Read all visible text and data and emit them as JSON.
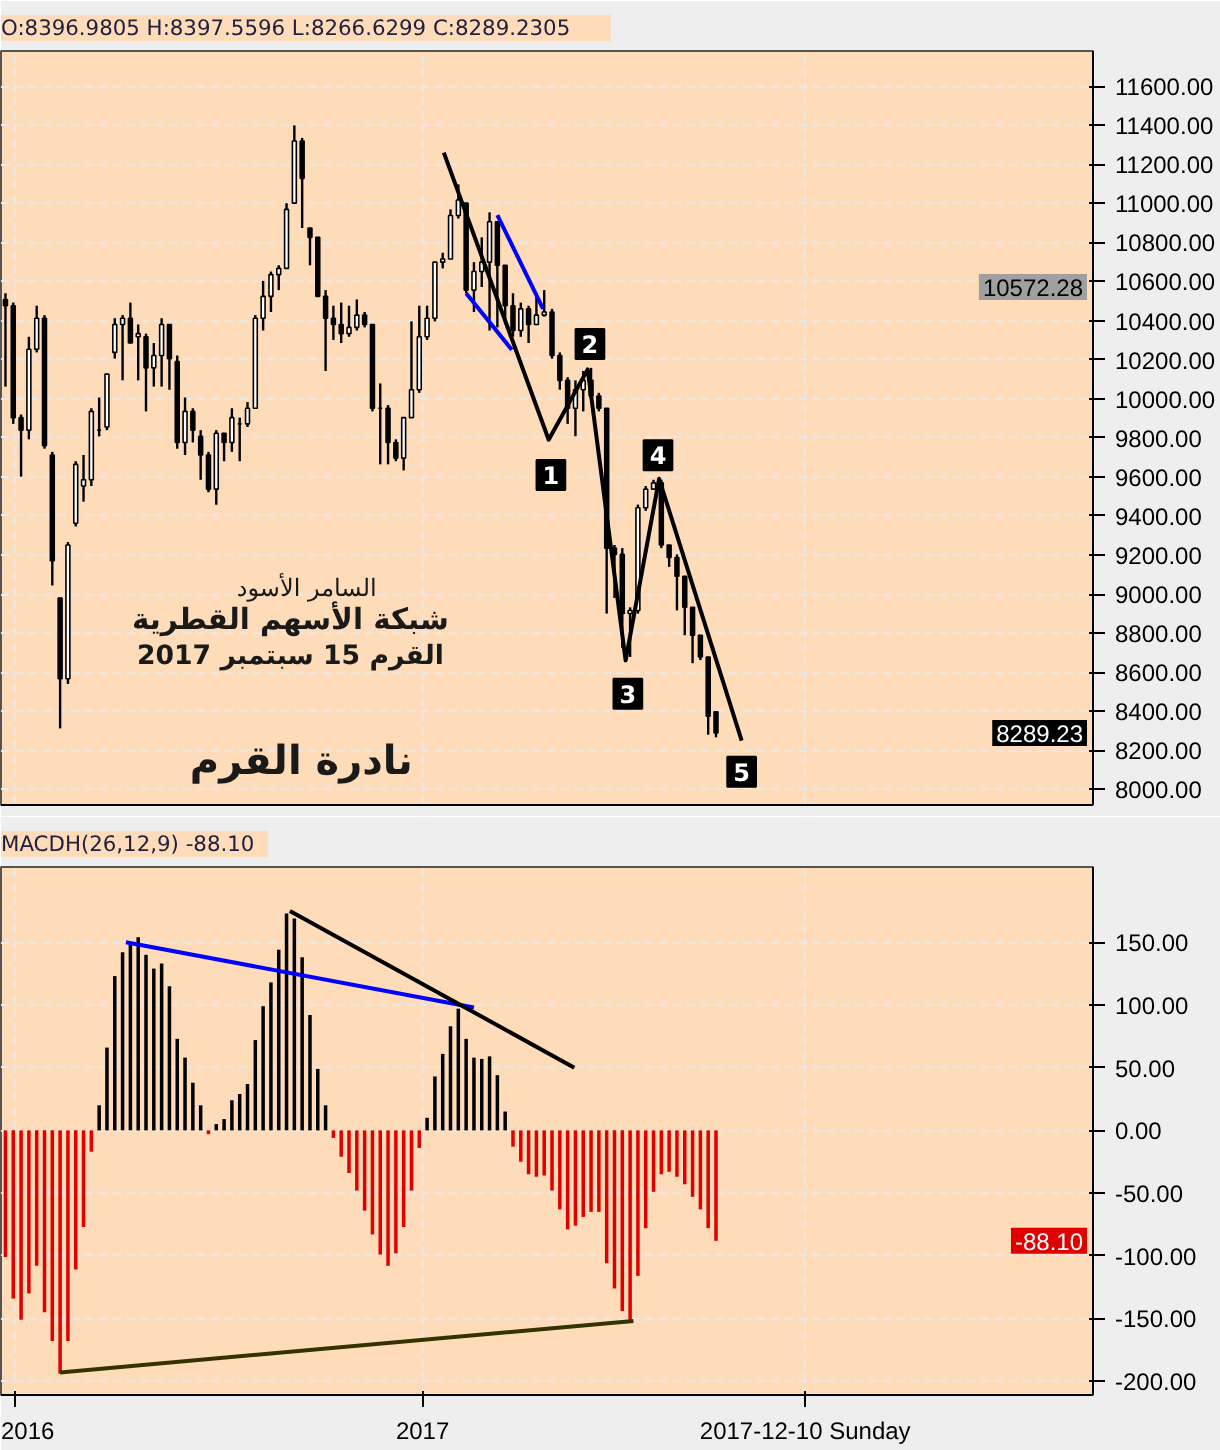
{
  "chart_data": [
    {
      "type": "candlestick",
      "title": "O:8396.9805   H:8397.5596   L:8266.6299   C:8289.2305",
      "color": "#000000",
      "x": [
        "2015-12-24",
        "2015-12-31",
        "2016-01-07",
        "2016-01-14",
        "2016-01-21",
        "2016-01-28",
        "2016-02-04",
        "2016-02-11",
        "2016-02-18",
        "2016-02-25",
        "2016-03-03",
        "2016-03-10",
        "2016-03-17",
        "2016-03-24",
        "2016-03-31",
        "2016-04-07",
        "2016-04-14",
        "2016-04-21",
        "2016-04-28",
        "2016-05-05",
        "2016-05-12",
        "2016-05-19",
        "2016-05-26",
        "2016-06-02",
        "2016-06-09",
        "2016-06-16",
        "2016-06-23",
        "2016-06-30",
        "2016-07-07",
        "2016-07-14",
        "2016-07-21",
        "2016-07-28",
        "2016-08-04",
        "2016-08-11",
        "2016-08-18",
        "2016-08-25",
        "2016-09-01",
        "2016-09-08",
        "2016-09-15",
        "2016-09-22",
        "2016-09-29",
        "2016-10-06",
        "2016-10-13",
        "2016-10-20",
        "2016-10-27",
        "2016-11-03",
        "2016-11-10",
        "2016-11-17",
        "2016-11-24",
        "2016-12-01",
        "2016-12-08",
        "2016-12-15",
        "2016-12-22",
        "2016-12-29",
        "2017-01-05",
        "2017-01-12",
        "2017-01-19",
        "2017-01-26",
        "2017-02-02",
        "2017-02-09",
        "2017-02-16",
        "2017-02-23",
        "2017-03-02",
        "2017-03-09",
        "2017-03-16",
        "2017-03-23",
        "2017-03-30",
        "2017-04-06",
        "2017-04-13",
        "2017-04-20",
        "2017-04-27",
        "2017-05-04",
        "2017-05-11",
        "2017-05-18",
        "2017-05-25",
        "2017-06-01",
        "2017-06-08",
        "2017-06-15",
        "2017-06-22",
        "2017-06-29",
        "2017-07-06",
        "2017-07-13",
        "2017-07-20",
        "2017-07-27",
        "2017-08-03",
        "2017-08-10",
        "2017-08-17",
        "2017-08-24",
        "2017-08-31",
        "2017-09-07",
        "2017-09-14",
        "2017-09-21"
      ],
      "ohlc": [
        [
          10508,
          10540,
          10062,
          10476
        ],
        [
          10476,
          10492,
          9871,
          9903
        ],
        [
          9903,
          9919,
          9601,
          9839
        ],
        [
          9839,
          10317,
          9792,
          10253
        ],
        [
          10253,
          10476,
          10237,
          10412
        ],
        [
          10412,
          10428,
          9744,
          9760
        ],
        [
          9712,
          9728,
          9044,
          9171
        ],
        [
          8980,
          8980,
          8312,
          8566
        ],
        [
          8566,
          9266,
          8540,
          9251
        ],
        [
          9362,
          9680,
          9346,
          9664
        ],
        [
          9553,
          9712,
          9473,
          9585
        ],
        [
          9585,
          9951,
          9553,
          9935
        ],
        [
          9839,
          10006,
          9807,
          9839
        ],
        [
          9855,
          10126,
          9839,
          10126
        ],
        [
          10237,
          10412,
          10205,
          10380
        ],
        [
          10380,
          10428,
          10094,
          10412
        ],
        [
          10412,
          10492,
          10285,
          10285
        ],
        [
          10317,
          10380,
          10094,
          10333
        ],
        [
          10317,
          10333,
          9935,
          10158
        ],
        [
          10158,
          10285,
          10062,
          10221
        ],
        [
          10221,
          10412,
          10062,
          10380
        ],
        [
          10380,
          10380,
          10046,
          10205
        ],
        [
          10190,
          10221,
          9744,
          9776
        ],
        [
          9776,
          10006,
          9712,
          9935
        ],
        [
          9935,
          9951,
          9776,
          9839
        ],
        [
          9807,
          9839,
          9585,
          9712
        ],
        [
          9712,
          9728,
          9521,
          9537
        ],
        [
          9537,
          9839,
          9457,
          9823
        ],
        [
          9823,
          9823,
          9680,
          9776
        ],
        [
          9776,
          9951,
          9728,
          9903
        ],
        [
          9871,
          9903,
          9680,
          9871
        ],
        [
          9871,
          9983,
          9855,
          9951
        ],
        [
          9951,
          10428,
          9951,
          10412
        ],
        [
          10412,
          10603,
          10349,
          10524
        ],
        [
          10524,
          10651,
          10444,
          10635
        ],
        [
          10635,
          10683,
          10556,
          10667
        ],
        [
          10667,
          11001,
          10667,
          10969
        ],
        [
          11001,
          11399,
          11001,
          11319
        ],
        [
          11319,
          11335,
          10874,
          11128
        ],
        [
          10874,
          10874,
          10683,
          10826
        ],
        [
          10826,
          10826,
          10524,
          10524
        ],
        [
          10524,
          10556,
          10142,
          10412
        ],
        [
          10412,
          10476,
          10301,
          10380
        ],
        [
          10380,
          10492,
          10285,
          10333
        ],
        [
          10333,
          10476,
          10317,
          10365
        ],
        [
          10365,
          10508,
          10349,
          10428
        ],
        [
          10428,
          10444,
          10365,
          10380
        ],
        [
          10380,
          10380,
          9935,
          9951
        ],
        [
          9951,
          10078,
          9664,
          9951
        ],
        [
          9951,
          9967,
          9664,
          9776
        ],
        [
          9776,
          9792,
          9680,
          9696
        ],
        [
          9696,
          9903,
          9633,
          9903
        ],
        [
          9903,
          10396,
          9903,
          10046
        ],
        [
          10046,
          10476,
          10030,
          10317
        ],
        [
          10317,
          10476,
          10301,
          10412
        ],
        [
          10412,
          10699,
          10396,
          10699
        ],
        [
          10699,
          10747,
          10667,
          10715
        ],
        [
          10715,
          10969,
          10715,
          10938
        ],
        [
          10938,
          11097,
          10922,
          11017
        ],
        [
          11001,
          11001,
          10540,
          10556
        ],
        [
          10556,
          10699,
          10444,
          10651
        ],
        [
          10651,
          10826,
          10572,
          10699
        ],
        [
          10699,
          10954,
          10349,
          10906
        ],
        [
          10906,
          10906,
          10365,
          10683
        ],
        [
          10683,
          10683,
          10381,
          10476
        ],
        [
          10476,
          10540,
          10317,
          10349
        ],
        [
          10349,
          10492,
          10317,
          10460
        ],
        [
          10460,
          10476,
          10285,
          10380
        ],
        [
          10380,
          10540,
          10380,
          10428
        ],
        [
          10428,
          10556,
          10420,
          10444
        ],
        [
          10444,
          10460,
          10205,
          10221
        ],
        [
          10221,
          10237,
          10046,
          10094
        ],
        [
          10094,
          10110,
          9871,
          9951
        ],
        [
          9951,
          10094,
          9808,
          10046
        ],
        [
          10046,
          10142,
          9935,
          10094
        ],
        [
          10094,
          10158,
          9999,
          10014
        ],
        [
          10014,
          10030,
          9935,
          9951
        ],
        [
          9951,
          9951,
          8900,
          9235
        ],
        [
          9235,
          9251,
          8980,
          9203
        ],
        [
          9203,
          9235,
          8725,
          8900
        ],
        [
          8900,
          8932,
          8678,
          8916
        ],
        [
          8916,
          9458,
          8900,
          9442
        ],
        [
          9442,
          9553,
          9426,
          9537
        ],
        [
          9537,
          9585,
          9537,
          9569
        ],
        [
          9569,
          9585,
          9235,
          9251
        ],
        [
          9251,
          9251,
          9139,
          9187
        ],
        [
          9187,
          9203,
          8916,
          9091
        ],
        [
          9091,
          9091,
          8789,
          8932
        ],
        [
          8932,
          8932,
          8646,
          8789
        ],
        [
          8789,
          8789,
          8662,
          8678
        ],
        [
          8678,
          8678,
          8280,
          8375
        ],
        [
          8396.9805,
          8397.5596,
          8266.6299,
          8289.2305
        ]
      ],
      "series": [
        {
          "type": "line",
          "color": "#000000",
          "x": [
            "2017-01-20",
            "2017-04-24",
            "2017-05-29",
            "2017-07-02",
            "2017-08-01",
            "2017-10-14"
          ],
          "values": [
            11260,
            9790,
            10150,
            8660,
            9590,
            8250
          ]
        },
        {
          "type": "line",
          "color": "#0000ff",
          "x": [
            "2017-03-09",
            "2017-04-19"
          ],
          "values": [
            10940,
            10460
          ]
        },
        {
          "type": "line",
          "color": "#0000ff",
          "x": [
            "2017-02-09",
            "2017-03-22"
          ],
          "values": [
            10540,
            10250
          ]
        }
      ],
      "xlim": [
        "2015-12-20",
        "2018-08-25"
      ],
      "xticks": [
        {
          "value": "2016",
          "label": null
        },
        {
          "value": "2017",
          "label": null
        },
        {
          "value": "2017-12-10",
          "label": null
        }
      ],
      "tick_labels": "y",
      "ylim": [
        7920,
        11780
      ],
      "yticks": [
        {
          "value": 8000,
          "label": "8000.00"
        },
        {
          "value": 8200,
          "label": "8200.00"
        },
        {
          "value": 8400,
          "label": "8400.00"
        },
        {
          "value": 8600,
          "label": "8600.00"
        },
        {
          "value": 8800,
          "label": "8800.00"
        },
        {
          "value": 9000,
          "label": "9000.00"
        },
        {
          "value": 9200,
          "label": "9200.00"
        },
        {
          "value": 9400,
          "label": "9400.00"
        },
        {
          "value": 9600,
          "label": "9600.00"
        },
        {
          "value": 9800,
          "label": "9800.00"
        },
        {
          "value": 10000,
          "label": "10000.00"
        },
        {
          "value": 10200,
          "label": "10200.00"
        },
        {
          "value": 10400,
          "label": "10400.00"
        },
        {
          "value": 10600,
          "label": "10600.00"
        },
        {
          "value": 10800,
          "label": "10800.00"
        },
        {
          "value": 11000,
          "label": "11000.00"
        },
        {
          "value": 11200,
          "label": "11200.00"
        },
        {
          "value": 11400,
          "label": "11400.00"
        },
        {
          "value": 11600,
          "label": "11600.00"
        }
      ],
      "grid": true,
      "annotations": [
        {
          "text": "1",
          "x": "2017-04-26",
          "y": 9610
        },
        {
          "text": "2",
          "x": "2017-05-31",
          "y": 10280
        },
        {
          "text": "3",
          "x": "2017-07-04",
          "y": 8490
        },
        {
          "text": "4",
          "x": "2017-07-31",
          "y": 9710
        },
        {
          "text": "5",
          "x": "2017-10-14",
          "y": 8090
        },
        "السامر الأسود",
        "شبكة الأسهم القطرية",
        "القرم 15 سبتمبر 2017",
        "نادرة القرم",
        "10572.28",
        "8289.23"
      ]
    },
    {
      "type": "bar",
      "title": "MACDH(26,12,9)   -88.10",
      "x": [
        "2015-12-24",
        "2015-12-31",
        "2016-01-07",
        "2016-01-14",
        "2016-01-21",
        "2016-01-28",
        "2016-02-04",
        "2016-02-11",
        "2016-02-18",
        "2016-02-25",
        "2016-03-03",
        "2016-03-10",
        "2016-03-17",
        "2016-03-24",
        "2016-03-31",
        "2016-04-07",
        "2016-04-14",
        "2016-04-21",
        "2016-04-28",
        "2016-05-05",
        "2016-05-12",
        "2016-05-19",
        "2016-05-26",
        "2016-06-02",
        "2016-06-09",
        "2016-06-16",
        "2016-06-23",
        "2016-06-30",
        "2016-07-07",
        "2016-07-14",
        "2016-07-21",
        "2016-07-28",
        "2016-08-04",
        "2016-08-11",
        "2016-08-18",
        "2016-08-25",
        "2016-09-01",
        "2016-09-08",
        "2016-09-15",
        "2016-09-22",
        "2016-09-29",
        "2016-10-06",
        "2016-10-13",
        "2016-10-20",
        "2016-10-27",
        "2016-11-03",
        "2016-11-10",
        "2016-11-17",
        "2016-11-24",
        "2016-12-01",
        "2016-12-08",
        "2016-12-15",
        "2016-12-22",
        "2016-12-29",
        "2017-01-05",
        "2017-01-12",
        "2017-01-19",
        "2017-01-26",
        "2017-02-02",
        "2017-02-09",
        "2017-02-16",
        "2017-02-23",
        "2017-03-02",
        "2017-03-09",
        "2017-03-16",
        "2017-03-23",
        "2017-03-30",
        "2017-04-06",
        "2017-04-13",
        "2017-04-20",
        "2017-04-27",
        "2017-05-04",
        "2017-05-11",
        "2017-05-18",
        "2017-05-25",
        "2017-06-01",
        "2017-06-08",
        "2017-06-15",
        "2017-06-22",
        "2017-06-29",
        "2017-07-06",
        "2017-07-13",
        "2017-07-20",
        "2017-07-27",
        "2017-08-03",
        "2017-08-10",
        "2017-08-17",
        "2017-08-24",
        "2017-08-31",
        "2017-09-07",
        "2017-09-14",
        "2017-09-21"
      ],
      "values": [
        -101,
        -134,
        -151,
        -130,
        -108,
        -145,
        -168,
        -194,
        -168,
        -111,
        -77,
        -17,
        20,
        66,
        123,
        142,
        150,
        154,
        140,
        129,
        133,
        115,
        73,
        58,
        38,
        20,
        -3,
        5,
        9,
        24,
        29,
        37,
        72,
        99,
        118,
        144,
        173,
        169,
        138,
        92,
        49,
        20,
        -6,
        -21,
        -34,
        -48,
        -64,
        -83,
        -99,
        -108,
        -98,
        -77,
        -48,
        -14,
        10,
        43,
        61,
        83,
        97,
        73,
        58,
        57,
        59,
        44,
        15,
        -13,
        -25,
        -35,
        -37,
        -36,
        -48,
        -63,
        -79,
        -76,
        -69,
        -65,
        -65,
        -106,
        -126,
        -144,
        -151,
        -116,
        -78,
        -49,
        -35,
        -33,
        -37,
        -43,
        -53,
        -63,
        -78,
        -88.1
      ],
      "colors": [
        "#e00000",
        "#e00000",
        "#e00000",
        "#e00000",
        "#e00000",
        "#e00000",
        "#e00000",
        "#e00000",
        "#e00000",
        "#e00000",
        "#e00000",
        "#e00000",
        "#000000",
        "#000000",
        "#000000",
        "#000000",
        "#000000",
        "#000000",
        "#000000",
        "#000000",
        "#000000",
        "#000000",
        "#000000",
        "#000000",
        "#000000",
        "#000000",
        "#e00000",
        "#000000",
        "#000000",
        "#000000",
        "#000000",
        "#000000",
        "#000000",
        "#000000",
        "#000000",
        "#000000",
        "#000000",
        "#000000",
        "#000000",
        "#000000",
        "#000000",
        "#000000",
        "#e00000",
        "#e00000",
        "#e00000",
        "#e00000",
        "#e00000",
        "#e00000",
        "#e00000",
        "#e00000",
        "#e00000",
        "#e00000",
        "#e00000",
        "#e00000",
        "#000000",
        "#000000",
        "#000000",
        "#000000",
        "#000000",
        "#000000",
        "#000000",
        "#000000",
        "#000000",
        "#000000",
        "#000000",
        "#e00000",
        "#e00000",
        "#e00000",
        "#e00000",
        "#e00000",
        "#e00000",
        "#e00000",
        "#e00000",
        "#e00000",
        "#e00000",
        "#e00000",
        "#e00000",
        "#e00000",
        "#e00000",
        "#e00000",
        "#e00000",
        "#e00000",
        "#e00000",
        "#e00000",
        "#e00000",
        "#e00000",
        "#e00000",
        "#e00000",
        "#e00000",
        "#e00000",
        "#e00000",
        "#e00000"
      ],
      "series": [
        {
          "type": "line",
          "color": "#0000ff",
          "x": [
            "2016-04-10",
            "2017-02-16"
          ],
          "values": [
            150,
            98
          ]
        },
        {
          "type": "line",
          "color": "#000000",
          "x": [
            "2016-09-04",
            "2017-05-17"
          ],
          "values": [
            175,
            50
          ]
        },
        {
          "type": "line",
          "color": "#333300",
          "x": [
            "2016-02-11",
            "2017-07-09"
          ],
          "values": [
            -193,
            -152
          ]
        }
      ],
      "xlim": [
        "2015-12-20",
        "2018-08-25"
      ],
      "xticks": [
        "2016",
        "2017",
        {
          "value": "2017-12-10",
          "label": "2017-12-10 Sunday"
        }
      ],
      "ylim": [
        -211,
        210
      ],
      "yticks": [
        {
          "value": -200,
          "label": "-200.00"
        },
        {
          "value": -150,
          "label": "-150.00"
        },
        {
          "value": -100,
          "label": "-100.00"
        },
        {
          "value": -50,
          "label": "-50.00"
        },
        {
          "value": 0,
          "label": "0.00"
        },
        {
          "value": 50,
          "label": "50.00"
        },
        {
          "value": 100,
          "label": "100.00"
        },
        {
          "value": 150,
          "label": "150.00"
        }
      ],
      "grid": true,
      "annotations": [
        "-88.10"
      ]
    }
  ]
}
